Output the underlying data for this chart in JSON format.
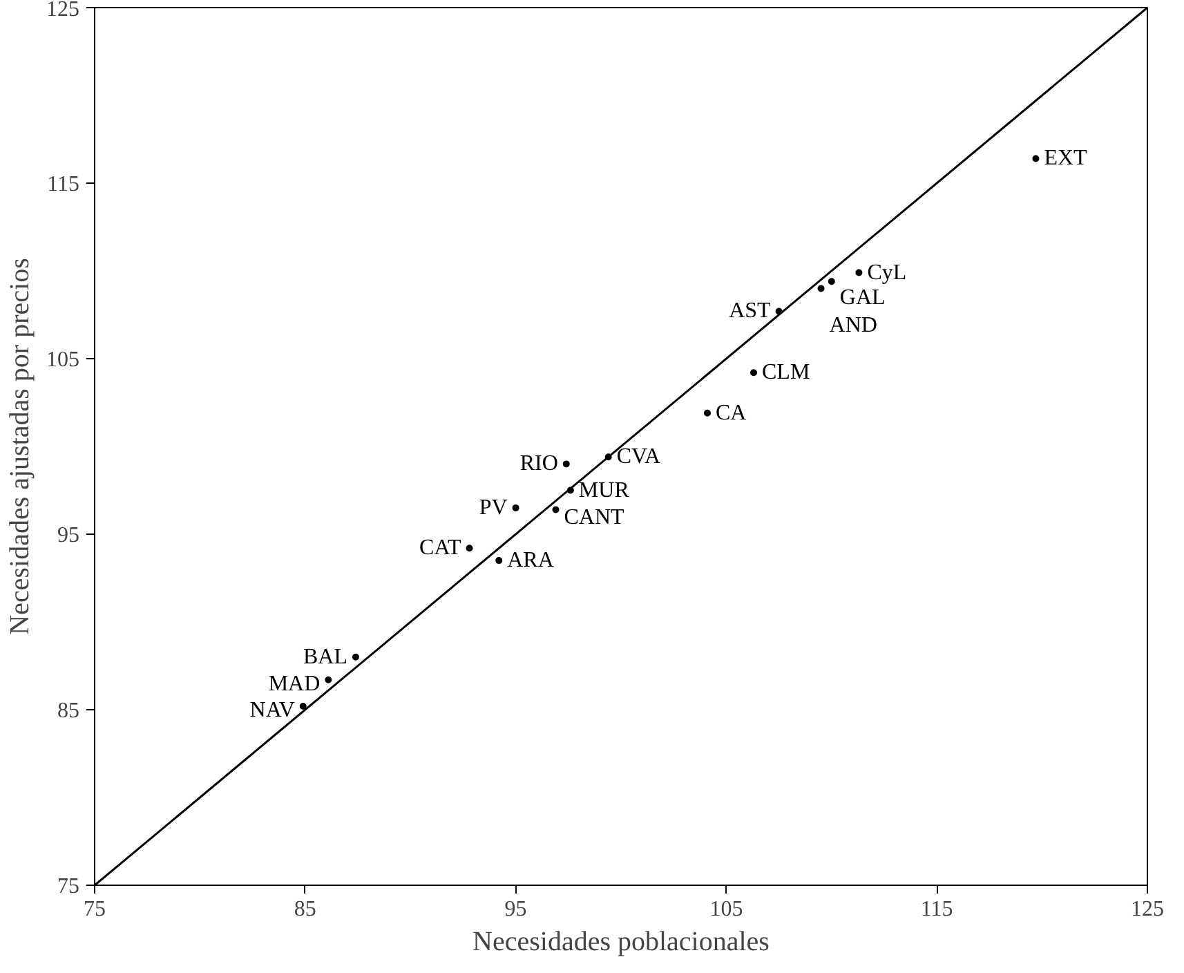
{
  "chart_data": {
    "type": "scatter",
    "xlabel": "Necesidades poblacionales",
    "ylabel": "Necesidades ajustadas por precios",
    "xlim": [
      75,
      125
    ],
    "ylim": [
      75,
      125
    ],
    "xticks": [
      75,
      85,
      95,
      105,
      115,
      125
    ],
    "yticks": [
      75,
      85,
      95,
      105,
      115,
      125
    ],
    "grid": false,
    "marker": "circle",
    "series": [
      {
        "type": "line",
        "marker": "none",
        "color": "#000000",
        "x": [
          75,
          125
        ],
        "values": [
          75,
          125
        ]
      },
      {
        "name": "EXT",
        "color": "#000000",
        "x": [
          119.7
        ],
        "values": [
          116.4
        ]
      },
      {
        "name": "CyL",
        "color": "#000000",
        "x": [
          111.3
        ],
        "values": [
          109.9
        ]
      },
      {
        "name": "GAL",
        "color": "#000000",
        "x": [
          110.0
        ],
        "values": [
          109.4
        ]
      },
      {
        "name": "AND",
        "color": "#000000",
        "x": [
          109.5
        ],
        "values": [
          109.0
        ]
      },
      {
        "name": "AST",
        "color": "#000000",
        "x": [
          107.5
        ],
        "values": [
          107.7
        ]
      },
      {
        "name": "CLM",
        "color": "#000000",
        "x": [
          106.3
        ],
        "values": [
          104.2
        ]
      },
      {
        "name": "CA",
        "color": "#000000",
        "x": [
          104.1
        ],
        "values": [
          101.9
        ]
      },
      {
        "name": "CVA",
        "color": "#000000",
        "x": [
          99.4
        ],
        "values": [
          99.4
        ]
      },
      {
        "name": "RIO",
        "color": "#000000",
        "x": [
          97.4
        ],
        "values": [
          99.0
        ]
      },
      {
        "name": "MUR",
        "color": "#000000",
        "x": [
          97.6
        ],
        "values": [
          97.5
        ]
      },
      {
        "name": "PV",
        "color": "#000000",
        "x": [
          95.0
        ],
        "values": [
          96.5
        ]
      },
      {
        "name": "CANT",
        "color": "#000000",
        "x": [
          96.9
        ],
        "values": [
          96.4
        ]
      },
      {
        "name": "CAT",
        "color": "#000000",
        "x": [
          92.8
        ],
        "values": [
          94.2
        ]
      },
      {
        "name": "ARA",
        "color": "#000000",
        "x": [
          94.2
        ],
        "values": [
          93.5
        ]
      },
      {
        "name": "BAL",
        "color": "#000000",
        "x": [
          87.4
        ],
        "values": [
          88.0
        ]
      },
      {
        "name": "MAD",
        "color": "#000000",
        "x": [
          86.1
        ],
        "values": [
          86.7
        ]
      },
      {
        "name": "NAV",
        "color": "#000000",
        "x": [
          84.9
        ],
        "values": [
          85.2
        ]
      }
    ]
  }
}
